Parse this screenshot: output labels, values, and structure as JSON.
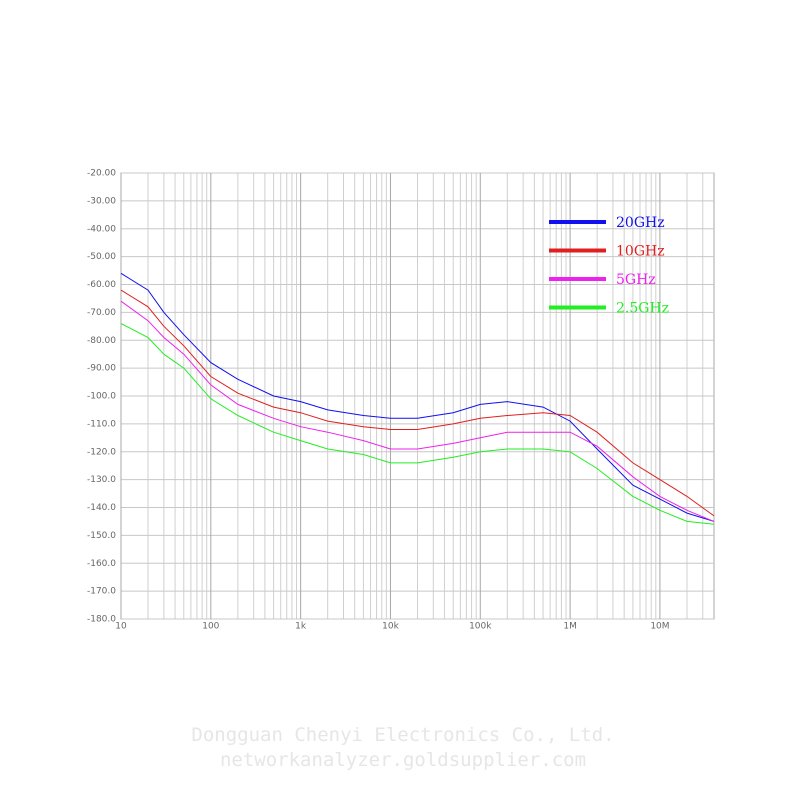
{
  "chart_data": {
    "type": "line",
    "x": [
      10,
      20,
      30,
      50,
      100,
      200,
      500,
      1000,
      2000,
      5000,
      10000,
      20000,
      50000,
      100000,
      200000,
      500000,
      1000000,
      2000000,
      5000000,
      10000000,
      20000000,
      40000000
    ],
    "series": [
      {
        "name": "20GHz",
        "color": "#1010f0",
        "values": [
          -56,
          -62,
          -70,
          -78,
          -88,
          -94,
          -100,
          -102,
          -105,
          -107,
          -108,
          -108,
          -106,
          -103,
          -102,
          -104,
          -109,
          -119,
          -132,
          -137,
          -142,
          -145
        ]
      },
      {
        "name": "10GHz",
        "color": "#e02020",
        "values": [
          -62,
          -68,
          -75,
          -82,
          -93,
          -99,
          -104,
          -106,
          -109,
          -111,
          -112,
          -112,
          -110,
          -108,
          -107,
          -106,
          -107,
          -113,
          -124,
          -130,
          -136,
          -143
        ]
      },
      {
        "name": "5GHz",
        "color": "#ee22ee",
        "values": [
          -66,
          -73,
          -79,
          -85,
          -96,
          -103,
          -108,
          -111,
          -113,
          -116,
          -119,
          -119,
          -117,
          -115,
          -113,
          -113,
          -113,
          -118,
          -129,
          -136,
          -141,
          -145
        ]
      },
      {
        "name": "2.5GHz",
        "color": "#22ee22",
        "values": [
          -74,
          -79,
          -85,
          -90,
          -101,
          -107,
          -113,
          -116,
          -119,
          -121,
          -124,
          -124,
          -122,
          -120,
          -119,
          -119,
          -120,
          -126,
          -136,
          -141,
          -145,
          -146
        ]
      }
    ],
    "xlim": [
      10,
      40000000
    ],
    "ylim": [
      -180,
      -20
    ],
    "xlog": true,
    "grid": true,
    "xticks": [
      10,
      100,
      {
        "value": 1000,
        "label": "1k"
      },
      {
        "value": 10000,
        "label": "10k"
      },
      {
        "value": 100000,
        "label": "100k"
      },
      {
        "value": 1000000,
        "label": "1M"
      },
      {
        "value": 10000000,
        "label": "10M"
      }
    ],
    "yticks": [
      {
        "value": -180,
        "label": "-180.0"
      },
      {
        "value": -170,
        "label": "-170.0"
      },
      {
        "value": -160,
        "label": "-160.0"
      },
      {
        "value": -150,
        "label": "-150.0"
      },
      {
        "value": -140,
        "label": "-140.0"
      },
      {
        "value": -130,
        "label": "-130.0"
      },
      {
        "value": -120,
        "label": "-120.0"
      },
      {
        "value": -110,
        "label": "-110.0"
      },
      {
        "value": -100,
        "label": "-100.0"
      },
      {
        "value": -90,
        "label": "-90.00"
      },
      {
        "value": -80,
        "label": "-80.00"
      },
      {
        "value": -70,
        "label": "-70.00"
      },
      {
        "value": -60,
        "label": "-60.00"
      },
      {
        "value": -50,
        "label": "-50.00"
      },
      {
        "value": -40,
        "label": "-40.00"
      },
      {
        "value": -30,
        "label": "-30.00"
      },
      {
        "value": -20,
        "label": "-20.00"
      }
    ],
    "annotations": [
      "Dongguan Chenyi Electronics Co., Ltd.",
      "networkanalyzer.goldsupplier.com"
    ]
  }
}
